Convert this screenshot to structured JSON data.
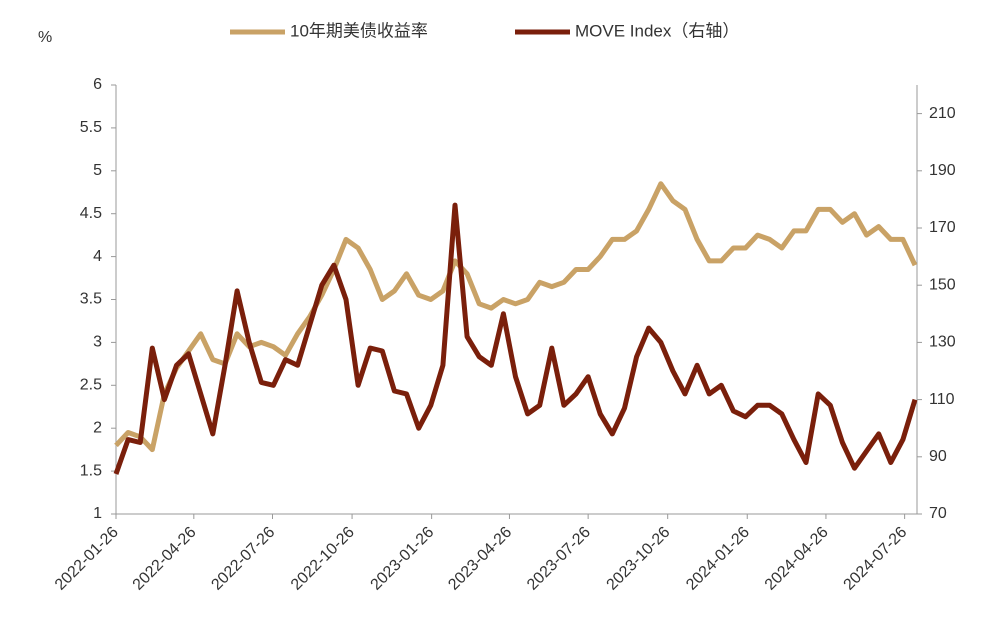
{
  "chart_data": {
    "type": "line",
    "y_unit_label": "%",
    "x": [
      "2022-01-26",
      "2022-02-09",
      "2022-02-23",
      "2022-03-09",
      "2022-03-23",
      "2022-04-06",
      "2022-04-20",
      "2022-05-04",
      "2022-05-18",
      "2022-06-01",
      "2022-06-15",
      "2022-06-29",
      "2022-07-13",
      "2022-07-27",
      "2022-08-10",
      "2022-08-24",
      "2022-09-07",
      "2022-09-21",
      "2022-10-05",
      "2022-10-19",
      "2022-11-02",
      "2022-11-16",
      "2022-11-30",
      "2022-12-14",
      "2022-12-28",
      "2023-01-11",
      "2023-01-25",
      "2023-02-08",
      "2023-02-22",
      "2023-03-08",
      "2023-03-22",
      "2023-04-05",
      "2023-04-19",
      "2023-05-03",
      "2023-05-17",
      "2023-05-31",
      "2023-06-14",
      "2023-06-28",
      "2023-07-12",
      "2023-07-26",
      "2023-08-09",
      "2023-08-23",
      "2023-09-06",
      "2023-09-20",
      "2023-10-04",
      "2023-10-18",
      "2023-11-01",
      "2023-11-15",
      "2023-11-29",
      "2023-12-13",
      "2023-12-27",
      "2024-01-10",
      "2024-01-24",
      "2024-02-07",
      "2024-02-21",
      "2024-03-06",
      "2024-03-20",
      "2024-04-03",
      "2024-04-17",
      "2024-05-01",
      "2024-05-15",
      "2024-05-29",
      "2024-06-12",
      "2024-06-26",
      "2024-07-10",
      "2024-07-24",
      "2024-08-07"
    ],
    "series": [
      {
        "name": "10年期美债收益率",
        "color": "#c9a266",
        "axis": "y",
        "values": [
          1.8,
          1.95,
          1.9,
          1.75,
          2.4,
          2.7,
          2.9,
          3.1,
          2.8,
          2.75,
          3.1,
          2.95,
          3.0,
          2.95,
          2.85,
          3.1,
          3.3,
          3.55,
          3.85,
          4.2,
          4.1,
          3.85,
          3.5,
          3.6,
          3.8,
          3.55,
          3.5,
          3.6,
          3.95,
          3.8,
          3.45,
          3.4,
          3.5,
          3.45,
          3.5,
          3.7,
          3.65,
          3.7,
          3.85,
          3.85,
          4.0,
          4.2,
          4.2,
          4.3,
          4.55,
          4.85,
          4.65,
          4.55,
          4.2,
          3.95,
          3.95,
          4.1,
          4.1,
          4.25,
          4.2,
          4.1,
          4.3,
          4.3,
          4.55,
          4.55,
          4.4,
          4.5,
          4.25,
          4.35,
          4.2,
          4.2,
          3.9
        ]
      },
      {
        "name": "MOVE Index（右轴）",
        "color": "#7a1f0b",
        "axis": "y2",
        "values": [
          84,
          96,
          95,
          128,
          110,
          122,
          126,
          112,
          98,
          122,
          148,
          130,
          116,
          115,
          124,
          122,
          136,
          150,
          157,
          145,
          115,
          128,
          127,
          113,
          112,
          100,
          108,
          122,
          178,
          132,
          125,
          122,
          140,
          118,
          105,
          108,
          128,
          108,
          112,
          118,
          105,
          98,
          107,
          125,
          135,
          130,
          120,
          112,
          122,
          112,
          115,
          106,
          104,
          108,
          108,
          105,
          96,
          88,
          112,
          108,
          95,
          86,
          92,
          98,
          88,
          96,
          110
        ]
      }
    ],
    "xlim": [
      "2022-01-26",
      "2024-08-07"
    ],
    "xticks": [
      "2022-01-26",
      "2022-04-26",
      "2022-07-26",
      "2022-10-26",
      "2023-01-26",
      "2023-04-26",
      "2023-07-26",
      "2023-10-26",
      "2024-01-26",
      "2024-04-26",
      "2024-07-26"
    ],
    "ylim": [
      1,
      6
    ],
    "yticks": [
      1,
      1.5,
      2,
      2.5,
      3,
      3.5,
      4,
      4.5,
      5,
      5.5,
      6
    ],
    "y2lim": [
      70,
      220
    ],
    "y2ticks": [
      70,
      90,
      110,
      130,
      150,
      170,
      190,
      210
    ]
  }
}
